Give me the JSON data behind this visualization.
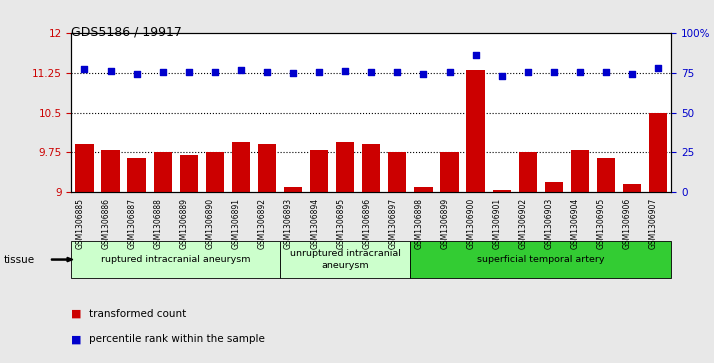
{
  "title": "GDS5186 / 19917",
  "samples": [
    "GSM1306885",
    "GSM1306886",
    "GSM1306887",
    "GSM1306888",
    "GSM1306889",
    "GSM1306890",
    "GSM1306891",
    "GSM1306892",
    "GSM1306893",
    "GSM1306894",
    "GSM1306895",
    "GSM1306896",
    "GSM1306897",
    "GSM1306898",
    "GSM1306899",
    "GSM1306900",
    "GSM1306901",
    "GSM1306902",
    "GSM1306903",
    "GSM1306904",
    "GSM1306905",
    "GSM1306906",
    "GSM1306907"
  ],
  "bar_values": [
    9.9,
    9.8,
    9.65,
    9.75,
    9.7,
    9.75,
    9.95,
    9.9,
    9.1,
    9.8,
    9.95,
    9.9,
    9.75,
    9.1,
    9.75,
    11.3,
    9.05,
    9.75,
    9.2,
    9.8,
    9.65,
    9.15,
    10.5
  ],
  "percentile_values": [
    11.32,
    11.28,
    11.22,
    11.26,
    11.27,
    11.26,
    11.3,
    11.27,
    11.25,
    11.26,
    11.28,
    11.27,
    11.27,
    11.22,
    11.26,
    11.58,
    11.18,
    11.26,
    11.26,
    11.27,
    11.27,
    11.22,
    11.33
  ],
  "bar_color": "#cc0000",
  "dot_color": "#0000cc",
  "left_ylim": [
    9,
    12
  ],
  "left_yticks": [
    9,
    9.75,
    10.5,
    11.25,
    12
  ],
  "right_yticklabels": [
    "0",
    "25",
    "50",
    "75",
    "100%"
  ],
  "hlines": [
    9.75,
    10.5,
    11.25
  ],
  "groups": [
    {
      "label": "ruptured intracranial aneurysm",
      "start": 0,
      "end": 8,
      "color": "#ccffcc"
    },
    {
      "label": "unruptured intracranial\naneurysm",
      "start": 8,
      "end": 13,
      "color": "#ccffcc"
    },
    {
      "label": "superficial temporal artery",
      "start": 13,
      "end": 23,
      "color": "#33cc33"
    }
  ],
  "tissue_label": "tissue",
  "legend_bar_label": "transformed count",
  "legend_dot_label": "percentile rank within the sample",
  "fig_bg_color": "#e8e8e8",
  "plot_bg_color": "#ffffff"
}
